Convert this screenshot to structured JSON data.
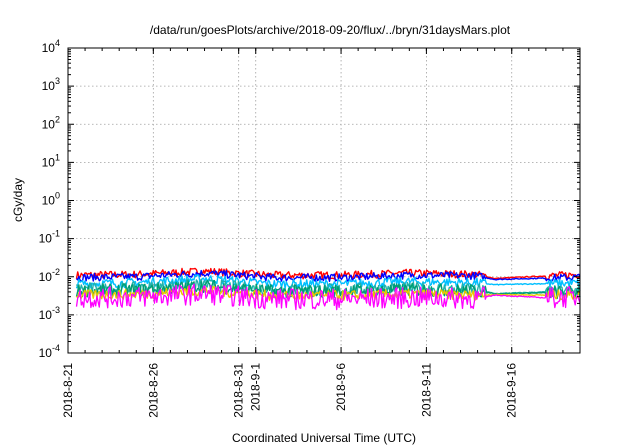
{
  "chart_data": {
    "type": "line",
    "title": "/data/run/goesPlots/archive/2018-09-20/flux/../bryn/31daysMars.plot",
    "xlabel": "Coordinated Universal Time (UTC)",
    "ylabel": "cGy/day",
    "y_scale": "log",
    "ylim": [
      0.0001,
      10000
    ],
    "x_range": [
      "2018-08-21",
      "2018-09-20"
    ],
    "x_ticks": [
      "2018-8-21",
      "2018-8-26",
      "2018-8-31",
      "2018-9-1",
      "2018-9-6",
      "2018-9-11",
      "2018-9-16"
    ],
    "y_ticks": [
      {
        "base": "10",
        "exp": "-4"
      },
      {
        "base": "10",
        "exp": "-3"
      },
      {
        "base": "10",
        "exp": "-2"
      },
      {
        "base": "10",
        "exp": "-1"
      },
      {
        "base": "10",
        "exp": "0"
      },
      {
        "base": "10",
        "exp": "1"
      },
      {
        "base": "10",
        "exp": "2"
      },
      {
        "base": "10",
        "exp": "3"
      },
      {
        "base": "10",
        "exp": "4"
      }
    ],
    "grid": true,
    "legend": "none",
    "series": [
      {
        "color": "#ff0000",
        "x": [
          "2018-08-21",
          "2018-08-25",
          "2018-08-29",
          "2018-09-02",
          "2018-09-06",
          "2018-09-10",
          "2018-09-14",
          "2018-09-15",
          "2018-09-18",
          "2018-09-20"
        ],
        "y": [
          0.011,
          0.0115,
          0.014,
          0.011,
          0.011,
          0.0125,
          0.0115,
          0.009,
          0.0105,
          0.0115
        ]
      },
      {
        "color": "#0000ff",
        "x": [
          "2018-08-21",
          "2018-08-25",
          "2018-08-29",
          "2018-09-02",
          "2018-09-06",
          "2018-09-10",
          "2018-09-14",
          "2018-09-15",
          "2018-09-18",
          "2018-09-20"
        ],
        "y": [
          0.0095,
          0.01,
          0.0125,
          0.0095,
          0.0095,
          0.011,
          0.0105,
          0.0085,
          0.0092,
          0.0098
        ]
      },
      {
        "color": "#00bfff",
        "x": [
          "2018-08-21",
          "2018-08-25",
          "2018-08-29",
          "2018-09-02",
          "2018-09-06",
          "2018-09-10",
          "2018-09-14",
          "2018-09-15",
          "2018-09-18",
          "2018-09-20"
        ],
        "y": [
          0.0065,
          0.007,
          0.009,
          0.0065,
          0.0065,
          0.0075,
          0.007,
          0.0062,
          0.0066,
          0.0068
        ]
      },
      {
        "color": "#20b2aa",
        "x": [
          "2018-08-21",
          "2018-08-25",
          "2018-08-29",
          "2018-09-02",
          "2018-09-06",
          "2018-09-10",
          "2018-09-14",
          "2018-09-15",
          "2018-09-18",
          "2018-09-20"
        ],
        "y": [
          0.0048,
          0.005,
          0.0062,
          0.0045,
          0.0046,
          0.005,
          0.0046,
          0.0036,
          0.004,
          0.0043
        ]
      },
      {
        "color": "#009e73",
        "x": [
          "2018-08-21",
          "2018-08-25",
          "2018-08-29",
          "2018-09-02",
          "2018-09-06",
          "2018-09-10",
          "2018-09-14",
          "2018-09-15",
          "2018-09-18",
          "2018-09-20"
        ],
        "y": [
          0.0042,
          0.0045,
          0.0058,
          0.0042,
          0.0042,
          0.0046,
          0.0043,
          0.0036,
          0.0038,
          0.004
        ]
      },
      {
        "color": "#e6c800",
        "x": [
          "2018-08-21",
          "2018-08-25",
          "2018-08-29",
          "2018-09-02",
          "2018-09-06",
          "2018-09-10",
          "2018-09-14",
          "2018-09-15",
          "2018-09-18",
          "2018-09-20"
        ],
        "y": [
          0.0033,
          0.0035,
          0.0043,
          0.0032,
          0.0032,
          0.0035,
          0.0033,
          0.0034,
          0.0033,
          0.0034
        ]
      },
      {
        "color": "#ff00ff",
        "x": [
          "2018-08-21",
          "2018-08-25",
          "2018-08-29",
          "2018-09-02",
          "2018-09-06",
          "2018-09-10",
          "2018-09-14",
          "2018-09-15",
          "2018-09-18",
          "2018-09-20"
        ],
        "y": [
          0.0028,
          0.0029,
          0.0036,
          0.0026,
          0.0026,
          0.0028,
          0.0027,
          0.0033,
          0.0028,
          0.003
        ]
      }
    ]
  }
}
